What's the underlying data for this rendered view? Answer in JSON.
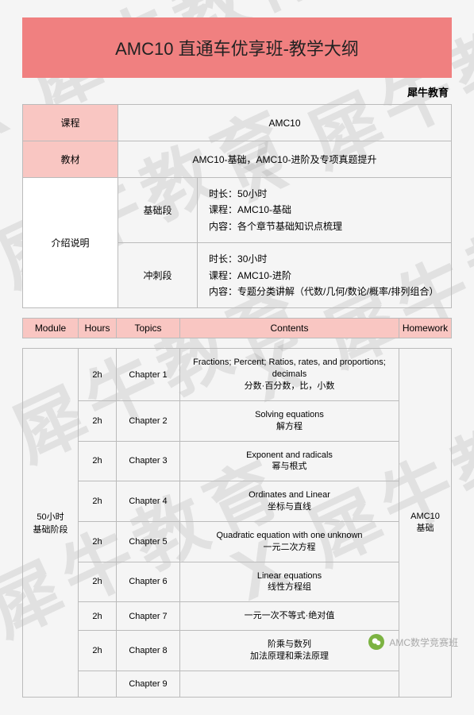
{
  "title": "AMC10 直通车优享班-教学大纲",
  "brand": "犀牛教育",
  "watermark_text": "X 犀牛教育",
  "info_rows": [
    {
      "label": "课程",
      "value": "AMC10"
    },
    {
      "label": "教材",
      "value": "AMC10-基础，AMC10-进阶及专项真题提升"
    }
  ],
  "intro_label": "介绍说明",
  "stages": [
    {
      "name": "基础段",
      "duration_label": "时长：",
      "duration": "50小时",
      "course_label": "课程：",
      "course": "AMC10-基础",
      "content_label": "内容：",
      "content": "各个章节基础知识点梳理"
    },
    {
      "name": "冲刺段",
      "duration_label": "时长：",
      "duration": "30小时",
      "course_label": "课程：",
      "course": "AMC10-进阶",
      "content_label": "内容：",
      "content": "专题分类讲解（代数/几何/数论/概率/排列组合）"
    }
  ],
  "headers": {
    "module": "Module",
    "hours": "Hours",
    "topics": "Topics",
    "contents": "Contents",
    "homework": "Homework"
  },
  "module": {
    "name_line1": "50小时",
    "name_line2": "基础阶段",
    "homework_line1": "AMC10",
    "homework_line2": "基础"
  },
  "rows": [
    {
      "hours": "2h",
      "topic": "Chapter 1",
      "en": "Fractions; Percent; Ratios, rates, and proportions; decimals",
      "cn": "分数·百分数，比，小数"
    },
    {
      "hours": "2h",
      "topic": "Chapter 2",
      "en": "Solving equations",
      "cn": "解方程"
    },
    {
      "hours": "2h",
      "topic": "Chapter 3",
      "en": "Exponent and radicals",
      "cn": "幂与根式"
    },
    {
      "hours": "2h",
      "topic": "Chapter 4",
      "en": "Ordinates and Linear",
      "cn": "坐标与直线"
    },
    {
      "hours": "2h",
      "topic": "Chapter 5",
      "en": "Quadratic equation with one unknown",
      "cn": "一元二次方程"
    },
    {
      "hours": "2h",
      "topic": "Chapter 6",
      "en": "Linear equations",
      "cn": "线性方程组"
    },
    {
      "hours": "2h",
      "topic": "Chapter 7",
      "en": "",
      "cn": "一元一次不等式·绝对值"
    },
    {
      "hours": "2h",
      "topic": "Chapter 8",
      "en": "阶乘与数列",
      "cn": "加法原理和乘法原理"
    },
    {
      "hours": "",
      "topic": "Chapter 9",
      "en": "",
      "cn": ""
    }
  ],
  "footer": "AMC数学竞赛班",
  "colors": {
    "banner": "#f08080",
    "header_bg": "#f9c6c2",
    "border": "#bbbbbb",
    "watermark": "rgba(0,0,0,0.08)"
  }
}
